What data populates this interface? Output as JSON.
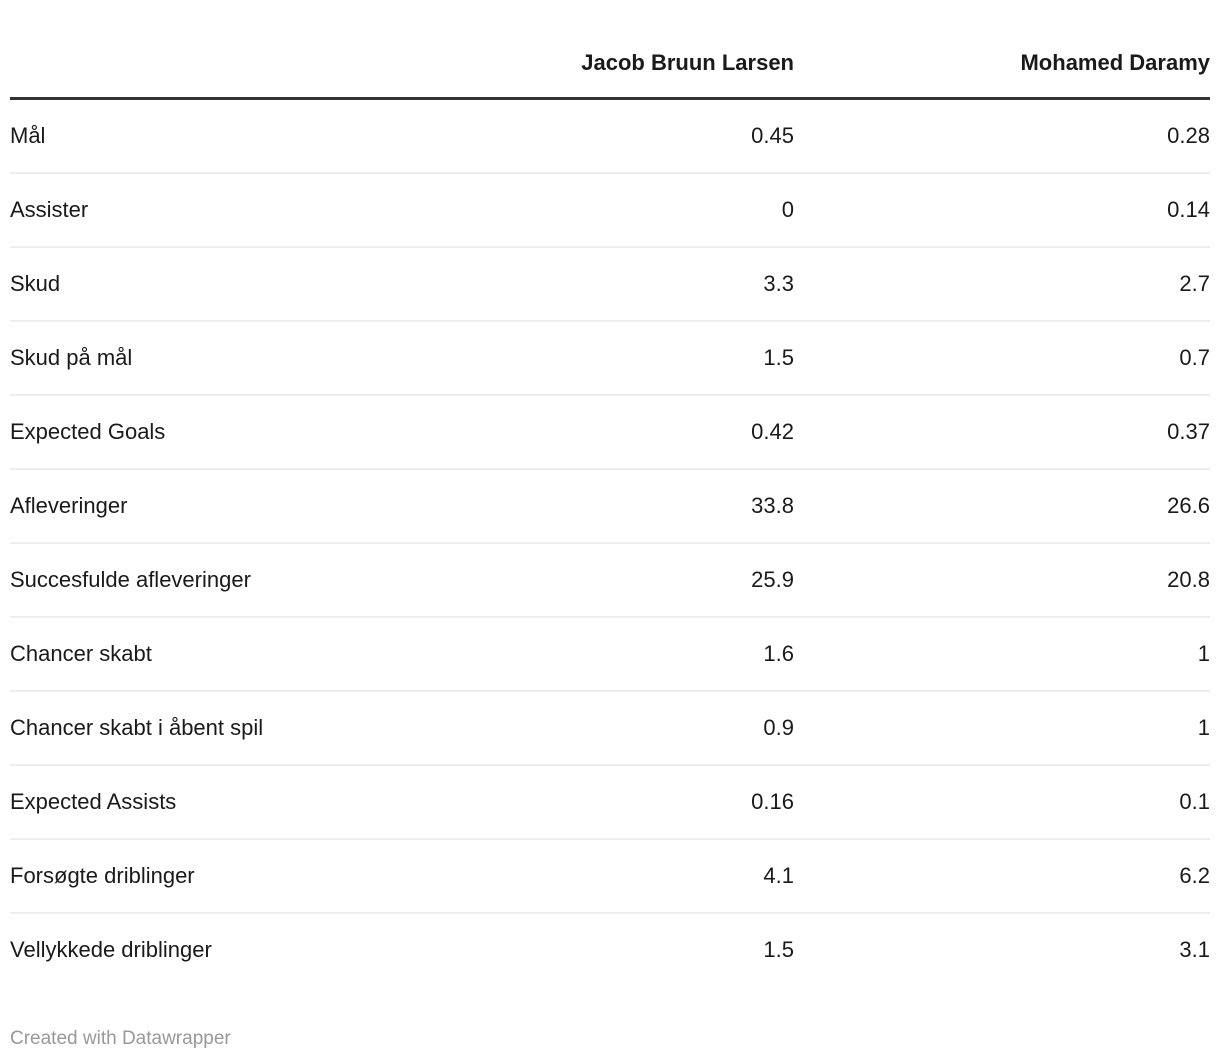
{
  "chart_data": {
    "type": "table",
    "title": "",
    "columns": [
      "",
      "Jacob Bruun Larsen",
      "Mohamed Daramy"
    ],
    "rows": [
      {
        "label": "Mål",
        "values": [
          "0.45",
          "0.28"
        ]
      },
      {
        "label": "Assister",
        "values": [
          "0",
          "0.14"
        ]
      },
      {
        "label": "Skud",
        "values": [
          "3.3",
          "2.7"
        ]
      },
      {
        "label": "Skud på mål",
        "values": [
          "1.5",
          "0.7"
        ]
      },
      {
        "label": "Expected Goals",
        "values": [
          "0.42",
          "0.37"
        ]
      },
      {
        "label": "Afleveringer",
        "values": [
          "33.8",
          "26.6"
        ]
      },
      {
        "label": "Succesfulde afleveringer",
        "values": [
          "25.9",
          "20.8"
        ]
      },
      {
        "label": "Chancer skabt",
        "values": [
          "1.6",
          "1"
        ]
      },
      {
        "label": "Chancer skabt i åbent spil",
        "values": [
          "0.9",
          "1"
        ]
      },
      {
        "label": "Expected Assists",
        "values": [
          "0.16",
          "0.1"
        ]
      },
      {
        "label": "Forsøgte driblinger",
        "values": [
          "4.1",
          "6.2"
        ]
      },
      {
        "label": "Vellykkede driblinger",
        "values": [
          "1.5",
          "3.1"
        ]
      }
    ],
    "layout": {
      "value_alignment": "right",
      "header_border_color": "#333333",
      "row_separator_color": "#eeeeee",
      "text_color": "#1a1a1a",
      "background_color": "#ffffff"
    }
  },
  "footer": {
    "attribution": "Created with Datawrapper",
    "text_color": "#999999"
  }
}
